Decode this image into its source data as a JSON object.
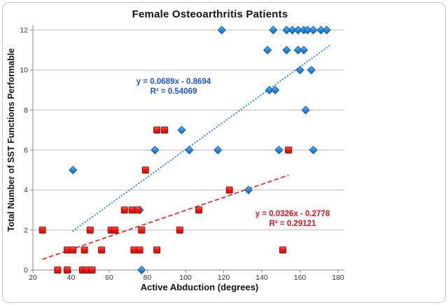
{
  "chart_data": {
    "type": "scatter",
    "title": "Female Osteoarthritis Patients",
    "xlabel": "Active Abduction (degrees)",
    "ylabel": "Total Number of SST Functions Performable",
    "xlim": [
      20,
      183
    ],
    "ylim": [
      0,
      12
    ],
    "xticks": [
      20,
      40,
      60,
      80,
      100,
      120,
      140,
      160,
      180
    ],
    "yticks": [
      0,
      2,
      4,
      6,
      8,
      10,
      12
    ],
    "grid": "horizontal",
    "legend": "none",
    "series": [
      {
        "name": "blue-diamond-series",
        "marker": "diamond",
        "fill_color": "#2e8fe2",
        "border_color": "#0d5ca8",
        "points": [
          [
            119,
            12
          ],
          [
            146,
            12
          ],
          [
            153,
            12
          ],
          [
            156,
            12
          ],
          [
            159,
            12
          ],
          [
            162,
            12
          ],
          [
            164,
            12
          ],
          [
            167,
            12
          ],
          [
            171,
            12
          ],
          [
            174,
            12
          ],
          [
            143,
            11
          ],
          [
            153,
            11
          ],
          [
            159,
            11
          ],
          [
            162,
            11
          ],
          [
            160,
            10
          ],
          [
            166,
            10
          ],
          [
            144,
            9
          ],
          [
            147,
            9
          ],
          [
            163,
            8
          ],
          [
            98,
            7
          ],
          [
            84,
            6
          ],
          [
            102,
            6
          ],
          [
            117,
            6
          ],
          [
            149,
            6
          ],
          [
            167,
            6
          ],
          [
            41,
            5
          ],
          [
            133,
            4
          ],
          [
            76,
            3
          ],
          [
            77,
            0
          ]
        ],
        "trendline": {
          "style": "dotted",
          "color": "#2f7fd6",
          "slope": 0.0689,
          "intercept": -0.8694,
          "x_start": 41,
          "x_end": 176,
          "equation": "y = 0.0689x - 0.8694",
          "r2": "R² = 0.54069"
        }
      },
      {
        "name": "red-square-series",
        "marker": "square",
        "fill_color": "#ee2318",
        "border_color": "#9a1007",
        "points": [
          [
            85,
            7
          ],
          [
            89,
            7
          ],
          [
            154,
            6
          ],
          [
            79,
            5
          ],
          [
            123,
            4
          ],
          [
            68,
            3
          ],
          [
            72,
            3
          ],
          [
            75,
            3
          ],
          [
            107,
            3
          ],
          [
            25,
            2
          ],
          [
            50,
            2
          ],
          [
            61,
            2
          ],
          [
            63,
            2
          ],
          [
            77,
            2
          ],
          [
            97,
            2
          ],
          [
            38,
            1
          ],
          [
            41,
            1
          ],
          [
            47,
            1
          ],
          [
            56,
            1
          ],
          [
            73,
            1
          ],
          [
            76,
            1
          ],
          [
            85,
            1
          ],
          [
            151,
            1
          ],
          [
            33,
            0
          ],
          [
            38,
            0
          ],
          [
            46,
            0
          ],
          [
            48,
            0
          ],
          [
            51,
            0
          ]
        ],
        "trendline": {
          "style": "dashed",
          "color": "#e02a20",
          "slope": 0.0326,
          "intercept": -0.2778,
          "x_start": 25,
          "x_end": 154,
          "equation": "y = 0.0326x - 0.2778",
          "r2": "R² = 0.29121"
        }
      }
    ]
  }
}
